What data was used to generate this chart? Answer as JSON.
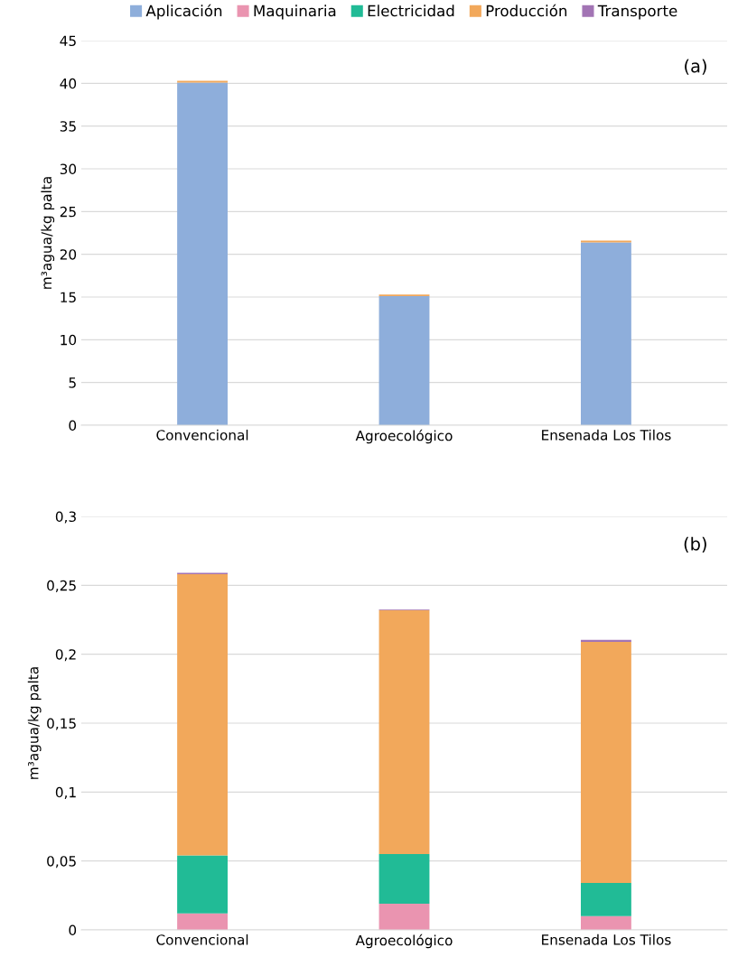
{
  "chart_data": [
    {
      "type": "bar",
      "stacked": true,
      "categories": [
        "Convencional",
        "Agroecológico",
        "Ensenada Los Tilos"
      ],
      "ylabel": "m³agua/kg palta",
      "annotations": [
        "(a)"
      ],
      "legend": "top",
      "grid": "y",
      "ylim": [
        0,
        45
      ],
      "yticks": [
        0,
        5,
        10,
        15,
        20,
        25,
        30,
        35,
        40,
        45
      ],
      "series": [
        {
          "name": "Aplicación",
          "color": "#8eaedb",
          "values": [
            40.1,
            15.1,
            21.4
          ]
        },
        {
          "name": "Maquinaria",
          "color": "#ea94b0",
          "values": [
            null,
            null,
            null
          ]
        },
        {
          "name": "Electricidad",
          "color": "#21bb96",
          "values": [
            null,
            null,
            null
          ]
        },
        {
          "name": "Producción",
          "color": "#f2a85b",
          "values": [
            0.2,
            0.2,
            0.2
          ]
        },
        {
          "name": "Transporte",
          "color": "#a274b4",
          "values": [
            null,
            null,
            null
          ]
        }
      ]
    },
    {
      "type": "bar",
      "stacked": true,
      "categories": [
        "Convencional",
        "Agroecológico",
        "Ensenada Los Tilos"
      ],
      "ylabel": "m³agua/kg palta",
      "annotations": [
        "(b)"
      ],
      "grid": "y",
      "ylim": [
        0,
        0.3
      ],
      "yticks": [
        0,
        {
          "value": 0.05,
          "label": "0,05"
        },
        {
          "value": 0.1,
          "label": "0,1"
        },
        {
          "value": 0.15,
          "label": "0,15"
        },
        {
          "value": 0.2,
          "label": "0,2"
        },
        {
          "value": 0.25,
          "label": "0,25"
        },
        {
          "value": 0.3,
          "label": "0,3"
        }
      ],
      "series": [
        {
          "color": "#ea94b0",
          "values": [
            0.012,
            0.019,
            0.01
          ]
        },
        {
          "color": "#21bb96",
          "values": [
            0.042,
            0.036,
            0.024
          ]
        },
        {
          "color": "#f2a85b",
          "values": [
            0.204,
            0.177,
            0.175
          ]
        },
        {
          "color": "#a274b4",
          "values": [
            0.001,
            0.0005,
            0.0015
          ]
        }
      ]
    }
  ]
}
